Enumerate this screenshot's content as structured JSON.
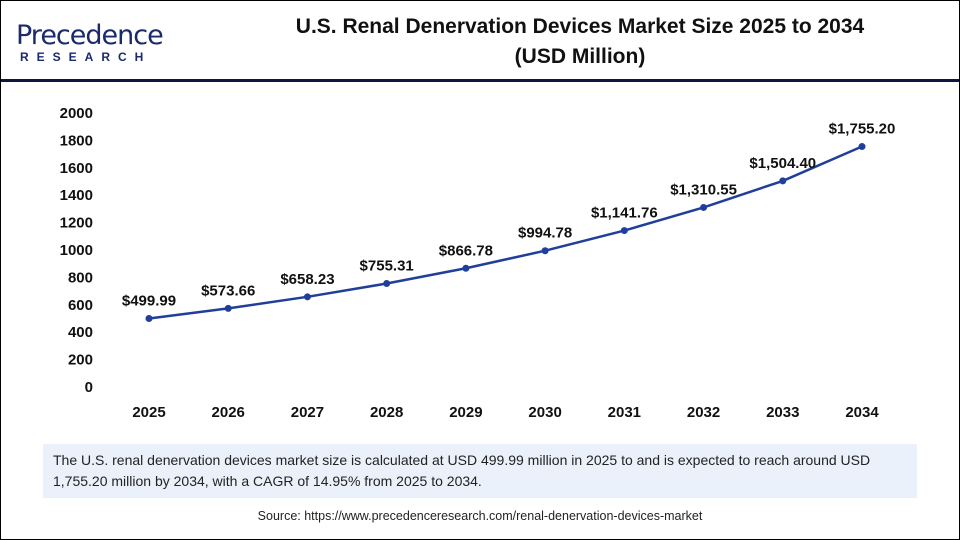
{
  "logo": {
    "brand": "Precedence",
    "sub": "RESEARCH"
  },
  "title_line1": "U.S. Renal Denervation Devices Market Size 2025 to 2034",
  "title_line2": "(USD Million)",
  "chart_data": {
    "type": "line",
    "title": "U.S. Renal Denervation Devices Market Size 2025 to 2034 (USD Million)",
    "categories": [
      "2025",
      "2026",
      "2027",
      "2028",
      "2029",
      "2030",
      "2031",
      "2032",
      "2033",
      "2034"
    ],
    "series": [
      {
        "values": [
          499.99,
          573.66,
          658.23,
          755.31,
          866.78,
          994.78,
          1141.76,
          1310.55,
          1504.4,
          1755.2
        ],
        "labels": [
          "$499.99",
          "$573.66",
          "$658.23",
          "$755.31",
          "$866.78",
          "$994.78",
          "$1,141.76",
          "$1,310.55",
          "$1,504.40",
          "$1,755.20"
        ]
      }
    ],
    "ylim": [
      0,
      2000
    ],
    "yticks": [
      0,
      200,
      400,
      600,
      800,
      1000,
      1200,
      1400,
      1600,
      1800,
      2000
    ],
    "grid": false,
    "line_color": "#1f3f9a"
  },
  "note": "The U.S. renal denervation devices market size is calculated at USD 499.99 million in 2025 to and is expected to reach around USD 1,755.20 million by 2034, with a CAGR of 14.95% from 2025 to 2034.",
  "source": "Source: https://www.precedenceresearch.com/renal-denervation-devices-market"
}
